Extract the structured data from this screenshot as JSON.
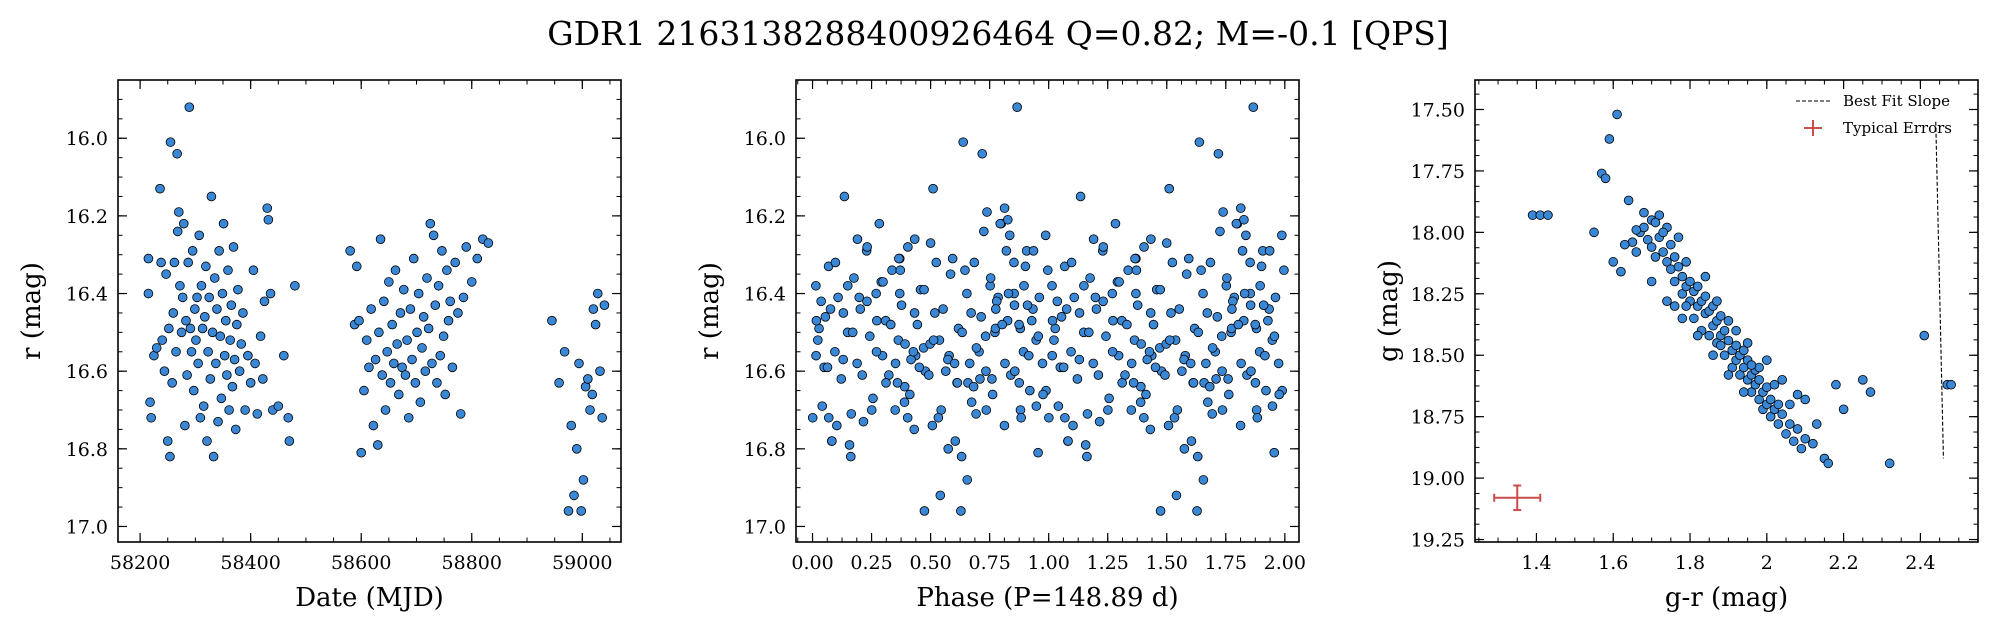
{
  "title": "GDR1 2163138288400926464  Q=0.82; M=-0.1 [QPS]",
  "panels": [
    {
      "id": "time",
      "xlabel": "Date (MJD)",
      "ylabel": "r (mag)"
    },
    {
      "id": "phase",
      "xlabel": "Phase (P=148.89 d)",
      "ylabel": "r (mag)"
    },
    {
      "id": "color",
      "xlabel": "g-r (mag)",
      "ylabel": "g (mag)"
    }
  ],
  "legend": {
    "best_fit": "Best Fit Slope",
    "errors": "Typical Errors"
  },
  "colors": {
    "marker_fill": "#3a87d6",
    "marker_edge": "#000000",
    "error_bar": "#cc4c4c"
  },
  "chart_data": [
    {
      "type": "scatter",
      "xlabel": "Date (MJD)",
      "ylabel": "r (mag)",
      "xlim": [
        58160,
        59070
      ],
      "ylim": [
        17.04,
        15.85
      ],
      "y_inverted": true,
      "xticks": [
        58200,
        58400,
        58600,
        58800,
        59000
      ],
      "yticks": [
        16.0,
        16.2,
        16.4,
        16.6,
        16.8,
        17.0
      ],
      "grid": false,
      "points": [
        [
          58215,
          16.31
        ],
        [
          58215,
          16.4
        ],
        [
          58218,
          16.68
        ],
        [
          58220,
          16.72
        ],
        [
          58225,
          16.56
        ],
        [
          58230,
          16.54
        ],
        [
          58236,
          16.13
        ],
        [
          58238,
          16.32
        ],
        [
          58240,
          16.52
        ],
        [
          58244,
          16.6
        ],
        [
          58247,
          16.35
        ],
        [
          58250,
          16.78
        ],
        [
          58252,
          16.49
        ],
        [
          58254,
          16.82
        ],
        [
          58255,
          16.01
        ],
        [
          58258,
          16.63
        ],
        [
          58260,
          16.45
        ],
        [
          58262,
          16.32
        ],
        [
          58265,
          16.55
        ],
        [
          58267,
          16.04
        ],
        [
          58268,
          16.24
        ],
        [
          58270,
          16.19
        ],
        [
          58272,
          16.38
        ],
        [
          58275,
          16.5
        ],
        [
          58277,
          16.41
        ],
        [
          58279,
          16.22
        ],
        [
          58281,
          16.74
        ],
        [
          58283,
          16.47
        ],
        [
          58285,
          16.61
        ],
        [
          58287,
          16.32
        ],
        [
          58289,
          15.92
        ],
        [
          58291,
          16.49
        ],
        [
          58293,
          16.55
        ],
        [
          58295,
          16.29
        ],
        [
          58297,
          16.65
        ],
        [
          58299,
          16.44
        ],
        [
          58301,
          16.52
        ],
        [
          58303,
          16.41
        ],
        [
          58305,
          16.58
        ],
        [
          58307,
          16.25
        ],
        [
          58309,
          16.72
        ],
        [
          58311,
          16.38
        ],
        [
          58313,
          16.49
        ],
        [
          58315,
          16.69
        ],
        [
          58317,
          16.46
        ],
        [
          58319,
          16.33
        ],
        [
          58321,
          16.78
        ],
        [
          58323,
          16.55
        ],
        [
          58325,
          16.41
        ],
        [
          58327,
          16.62
        ],
        [
          58329,
          16.15
        ],
        [
          58331,
          16.5
        ],
        [
          58333,
          16.82
        ],
        [
          58335,
          16.36
        ],
        [
          58337,
          16.58
        ],
        [
          58339,
          16.44
        ],
        [
          58341,
          16.73
        ],
        [
          58343,
          16.29
        ],
        [
          58345,
          16.51
        ],
        [
          58347,
          16.67
        ],
        [
          58349,
          16.4
        ],
        [
          58351,
          16.22
        ],
        [
          58353,
          16.56
        ],
        [
          58355,
          16.47
        ],
        [
          58357,
          16.61
        ],
        [
          58359,
          16.34
        ],
        [
          58361,
          16.7
        ],
        [
          58363,
          16.52
        ],
        [
          58365,
          16.43
        ],
        [
          58367,
          16.64
        ],
        [
          58369,
          16.28
        ],
        [
          58371,
          16.57
        ],
        [
          58373,
          16.75
        ],
        [
          58375,
          16.48
        ],
        [
          58377,
          16.39
        ],
        [
          58380,
          16.6
        ],
        [
          58383,
          16.53
        ],
        [
          58386,
          16.45
        ],
        [
          58390,
          16.7
        ],
        [
          58395,
          16.56
        ],
        [
          58400,
          16.63
        ],
        [
          58405,
          16.34
        ],
        [
          58408,
          16.58
        ],
        [
          58412,
          16.71
        ],
        [
          58418,
          16.51
        ],
        [
          58422,
          16.62
        ],
        [
          58425,
          16.42
        ],
        [
          58430,
          16.18
        ],
        [
          58432,
          16.21
        ],
        [
          58436,
          16.4
        ],
        [
          58440,
          16.7
        ],
        [
          58450,
          16.69
        ],
        [
          58460,
          16.56
        ],
        [
          58468,
          16.72
        ],
        [
          58470,
          16.78
        ],
        [
          58480,
          16.38
        ],
        [
          58580,
          16.29
        ],
        [
          58588,
          16.48
        ],
        [
          58592,
          16.33
        ],
        [
          58596,
          16.47
        ],
        [
          58600,
          16.81
        ],
        [
          58605,
          16.65
        ],
        [
          58610,
          16.52
        ],
        [
          58614,
          16.59
        ],
        [
          58618,
          16.44
        ],
        [
          58622,
          16.74
        ],
        [
          58626,
          16.57
        ],
        [
          58630,
          16.79
        ],
        [
          58632,
          16.5
        ],
        [
          58635,
          16.26
        ],
        [
          58638,
          16.61
        ],
        [
          58641,
          16.42
        ],
        [
          58644,
          16.7
        ],
        [
          58647,
          16.55
        ],
        [
          58650,
          16.37
        ],
        [
          58653,
          16.63
        ],
        [
          58656,
          16.48
        ],
        [
          58659,
          16.58
        ],
        [
          58662,
          16.34
        ],
        [
          58665,
          16.53
        ],
        [
          58668,
          16.66
        ],
        [
          58671,
          16.45
        ],
        [
          58674,
          16.59
        ],
        [
          58677,
          16.39
        ],
        [
          58680,
          16.61
        ],
        [
          58683,
          16.52
        ],
        [
          58686,
          16.72
        ],
        [
          58689,
          16.44
        ],
        [
          58692,
          16.57
        ],
        [
          58695,
          16.31
        ],
        [
          58698,
          16.63
        ],
        [
          58701,
          16.5
        ],
        [
          58704,
          16.4
        ],
        [
          58707,
          16.68
        ],
        [
          58710,
          16.54
        ],
        [
          58713,
          16.46
        ],
        [
          58716,
          16.6
        ],
        [
          58719,
          16.36
        ],
        [
          58722,
          16.49
        ],
        [
          58725,
          16.22
        ],
        [
          58728,
          16.58
        ],
        [
          58731,
          16.25
        ],
        [
          58734,
          16.43
        ],
        [
          58737,
          16.63
        ],
        [
          58740,
          16.38
        ],
        [
          58743,
          16.56
        ],
        [
          58746,
          16.29
        ],
        [
          58749,
          16.51
        ],
        [
          58752,
          16.66
        ],
        [
          58755,
          16.34
        ],
        [
          58758,
          16.47
        ],
        [
          58761,
          16.42
        ],
        [
          58765,
          16.59
        ],
        [
          58770,
          16.32
        ],
        [
          58775,
          16.45
        ],
        [
          58780,
          16.71
        ],
        [
          58785,
          16.41
        ],
        [
          58790,
          16.28
        ],
        [
          58800,
          16.37
        ],
        [
          58810,
          16.31
        ],
        [
          58820,
          16.26
        ],
        [
          58830,
          16.27
        ],
        [
          58945,
          16.47
        ],
        [
          58958,
          16.63
        ],
        [
          58968,
          16.55
        ],
        [
          58975,
          16.96
        ],
        [
          58980,
          16.74
        ],
        [
          58985,
          16.92
        ],
        [
          58990,
          16.8
        ],
        [
          58994,
          16.58
        ],
        [
          58998,
          16.96
        ],
        [
          59002,
          16.88
        ],
        [
          59006,
          16.64
        ],
        [
          59010,
          16.62
        ],
        [
          59014,
          16.7
        ],
        [
          59018,
          16.66
        ],
        [
          59020,
          16.44
        ],
        [
          59024,
          16.48
        ],
        [
          59028,
          16.4
        ],
        [
          59032,
          16.6
        ],
        [
          59036,
          16.72
        ],
        [
          59040,
          16.43
        ]
      ]
    },
    {
      "type": "scatter",
      "xlabel": "Phase (P=148.89 d)",
      "ylabel": "r (mag)",
      "xlim": [
        -0.07,
        2.06
      ],
      "ylim": [
        17.04,
        15.85
      ],
      "y_inverted": true,
      "xticks": [
        0.0,
        0.25,
        0.5,
        0.75,
        1.0,
        1.25,
        1.5,
        1.75,
        2.0
      ],
      "xtick_labels": [
        "0.00",
        "0.25",
        "0.50",
        "0.75",
        "1.00",
        "1.25",
        "1.50",
        "1.75",
        "2.00"
      ],
      "yticks": [
        16.0,
        16.2,
        16.4,
        16.6,
        16.8,
        17.0
      ],
      "grid": false,
      "phase_period_days": 148.89,
      "phase_epoch_mjd": 58160,
      "phase_source": "time"
    },
    {
      "type": "scatter",
      "xlabel": "g-r (mag)",
      "ylabel": "g (mag)",
      "xlim": [
        1.24,
        2.55
      ],
      "ylim": [
        19.26,
        17.38
      ],
      "y_inverted": true,
      "xticks": [
        1.4,
        1.6,
        1.8,
        2.0,
        2.2,
        2.4
      ],
      "yticks": [
        17.5,
        17.75,
        18.0,
        18.25,
        18.5,
        18.75,
        19.0,
        19.25
      ],
      "ytick_labels": [
        "17.50",
        "17.75",
        "18.00",
        "18.25",
        "18.50",
        "18.75",
        "19.00",
        "19.25"
      ],
      "grid": false,
      "legend_position": "top-right",
      "best_fit_line": [
        [
          2.44,
          17.55
        ],
        [
          2.46,
          18.92
        ]
      ],
      "typical_error": {
        "x": 1.35,
        "y": 19.08,
        "xerr": 0.06,
        "yerr": 0.05
      },
      "points": [
        [
          1.39,
          17.93
        ],
        [
          1.41,
          17.93
        ],
        [
          1.43,
          17.93
        ],
        [
          1.57,
          17.76
        ],
        [
          1.59,
          17.62
        ],
        [
          1.61,
          17.52
        ],
        [
          1.58,
          17.78
        ],
        [
          1.6,
          18.12
        ],
        [
          1.62,
          18.16
        ],
        [
          1.64,
          17.87
        ],
        [
          1.65,
          18.04
        ],
        [
          1.66,
          18.08
        ],
        [
          1.67,
          18.0
        ],
        [
          1.68,
          17.98
        ],
        [
          1.69,
          18.03
        ],
        [
          1.7,
          18.06
        ],
        [
          1.7,
          17.95
        ],
        [
          1.71,
          18.1
        ],
        [
          1.72,
          17.93
        ],
        [
          1.72,
          18.02
        ],
        [
          1.73,
          18.08
        ],
        [
          1.74,
          18.12
        ],
        [
          1.74,
          17.98
        ],
        [
          1.75,
          18.05
        ],
        [
          1.75,
          18.15
        ],
        [
          1.76,
          18.1
        ],
        [
          1.76,
          18.2
        ],
        [
          1.77,
          18.14
        ],
        [
          1.77,
          18.02
        ],
        [
          1.78,
          18.18
        ],
        [
          1.78,
          18.25
        ],
        [
          1.79,
          18.12
        ],
        [
          1.79,
          18.22
        ],
        [
          1.8,
          18.2
        ],
        [
          1.8,
          18.28
        ],
        [
          1.81,
          18.24
        ],
        [
          1.81,
          18.35
        ],
        [
          1.82,
          18.3
        ],
        [
          1.82,
          18.22
        ],
        [
          1.83,
          18.28
        ],
        [
          1.83,
          18.4
        ],
        [
          1.84,
          18.26
        ],
        [
          1.84,
          18.33
        ],
        [
          1.85,
          18.32
        ],
        [
          1.85,
          18.42
        ],
        [
          1.86,
          18.3
        ],
        [
          1.86,
          18.38
        ],
        [
          1.87,
          18.36
        ],
        [
          1.87,
          18.45
        ],
        [
          1.88,
          18.34
        ],
        [
          1.88,
          18.42
        ],
        [
          1.89,
          18.4
        ],
        [
          1.89,
          18.5
        ],
        [
          1.9,
          18.44
        ],
        [
          1.9,
          18.36
        ],
        [
          1.91,
          18.48
        ],
        [
          1.91,
          18.55
        ],
        [
          1.92,
          18.46
        ],
        [
          1.92,
          18.52
        ],
        [
          1.93,
          18.5
        ],
        [
          1.93,
          18.58
        ],
        [
          1.94,
          18.55
        ],
        [
          1.94,
          18.48
        ],
        [
          1.95,
          18.6
        ],
        [
          1.95,
          18.52
        ],
        [
          1.96,
          18.58
        ],
        [
          1.96,
          18.65
        ],
        [
          1.97,
          18.62
        ],
        [
          1.97,
          18.56
        ],
        [
          1.98,
          18.68
        ],
        [
          1.98,
          18.6
        ],
        [
          1.99,
          18.65
        ],
        [
          1.99,
          18.72
        ],
        [
          2.0,
          18.7
        ],
        [
          2.0,
          18.63
        ],
        [
          2.01,
          18.75
        ],
        [
          2.01,
          18.68
        ],
        [
          2.02,
          18.72
        ],
        [
          2.03,
          18.78
        ],
        [
          2.04,
          18.74
        ],
        [
          2.05,
          18.82
        ],
        [
          2.06,
          18.78
        ],
        [
          2.07,
          18.85
        ],
        [
          2.08,
          18.8
        ],
        [
          2.09,
          18.88
        ],
        [
          2.1,
          18.84
        ],
        [
          2.12,
          18.86
        ],
        [
          2.13,
          18.78
        ],
        [
          2.15,
          18.92
        ],
        [
          2.16,
          18.94
        ],
        [
          1.55,
          18.0
        ],
        [
          1.63,
          18.05
        ],
        [
          1.68,
          17.92
        ],
        [
          1.7,
          18.2
        ],
        [
          1.74,
          18.28
        ],
        [
          1.78,
          18.35
        ],
        [
          1.82,
          18.42
        ],
        [
          1.86,
          18.5
        ],
        [
          1.9,
          18.58
        ],
        [
          1.94,
          18.65
        ],
        [
          1.98,
          18.55
        ],
        [
          2.02,
          18.62
        ],
        [
          2.06,
          18.7
        ],
        [
          2.1,
          18.68
        ],
        [
          2.18,
          18.62
        ],
        [
          2.2,
          18.72
        ],
        [
          2.25,
          18.6
        ],
        [
          2.27,
          18.65
        ],
        [
          2.32,
          18.94
        ],
        [
          2.41,
          18.42
        ],
        [
          2.47,
          18.62
        ],
        [
          2.48,
          18.62
        ],
        [
          1.76,
          18.3
        ],
        [
          1.84,
          18.18
        ],
        [
          1.92,
          18.4
        ],
        [
          2.04,
          18.6
        ],
        [
          2.08,
          18.66
        ],
        [
          1.71,
          17.96
        ],
        [
          1.73,
          18.0
        ],
        [
          1.79,
          18.3
        ],
        [
          1.87,
          18.28
        ],
        [
          1.95,
          18.45
        ],
        [
          2.0,
          18.52
        ],
        [
          1.66,
          17.99
        ],
        [
          1.88,
          18.46
        ],
        [
          1.96,
          18.54
        ],
        [
          2.03,
          18.7
        ]
      ]
    }
  ]
}
